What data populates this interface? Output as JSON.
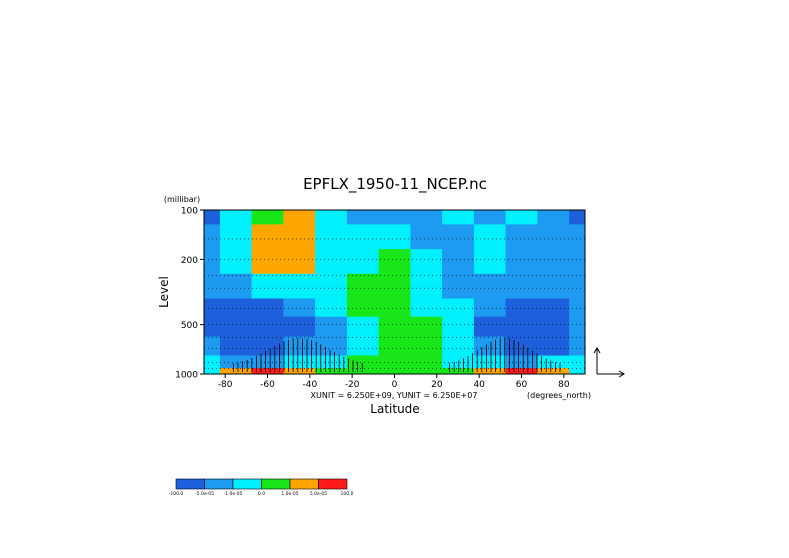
{
  "chart_data": {
    "type": "heatmap",
    "title": "EPFLX_1950-11_NCEP.nc",
    "xlabel": "Latitude",
    "ylabel": "Level",
    "y_unit": "(millibar)",
    "x_unit": "(degrees_north)",
    "vector_note": "XUNIT = 6.250E+09, YUNIT = 6.250E+07",
    "xlim": [
      -90,
      90
    ],
    "ylim": [
      1000,
      100
    ],
    "y_scale": "log",
    "x_ticks": [
      "-80",
      "-60",
      "-40",
      "-20",
      "0",
      "20",
      "40",
      "60",
      "80"
    ],
    "x_tick_values": [
      -80,
      -60,
      -40,
      -20,
      0,
      20,
      40,
      60,
      80
    ],
    "y_ticks": [
      "100",
      "200",
      "500",
      "1000"
    ],
    "y_tick_values": [
      100,
      200,
      500,
      1000
    ],
    "grid": "dotted horizontal",
    "legend_placement": "bottom-left colorbar",
    "colorbar": {
      "labels": [
        "-100.0",
        "-5.0e-05",
        "-1.0e-05",
        "0.0",
        "1.0e-05",
        "5.0e-05",
        "100.0"
      ],
      "colors": [
        "#1e5fdc",
        "#1e9bf0",
        "#00f0ff",
        "#19e619",
        "#ffa500",
        "#ff1a1a"
      ]
    },
    "color_scale": [
      "#1e5fdc",
      "#1e9bf0",
      "#00f0ff",
      "#19e619",
      "#ffa500",
      "#ff1a1a"
    ],
    "field_lat": [
      -90,
      -75,
      -60,
      -45,
      -30,
      -15,
      0,
      15,
      30,
      45,
      60,
      75,
      90
    ],
    "field_level": [
      100,
      150,
      200,
      300,
      400,
      500,
      700,
      850,
      1000
    ],
    "field_values": [
      [
        0,
        2,
        3,
        4,
        2,
        1,
        1,
        1,
        2,
        1,
        2,
        1,
        0
      ],
      [
        1,
        2,
        4,
        4,
        2,
        2,
        2,
        1,
        1,
        2,
        1,
        1,
        1
      ],
      [
        1,
        2,
        4,
        4,
        2,
        2,
        3,
        2,
        1,
        2,
        1,
        1,
        1
      ],
      [
        1,
        1,
        2,
        2,
        2,
        3,
        3,
        2,
        1,
        1,
        1,
        1,
        1
      ],
      [
        0,
        0,
        0,
        1,
        2,
        3,
        3,
        2,
        2,
        1,
        0,
        0,
        1
      ],
      [
        0,
        0,
        0,
        0,
        1,
        2,
        3,
        3,
        2,
        0,
        0,
        0,
        1
      ],
      [
        1,
        0,
        0,
        1,
        1,
        2,
        3,
        3,
        2,
        1,
        0,
        0,
        1
      ],
      [
        2,
        1,
        1,
        2,
        2,
        3,
        3,
        3,
        2,
        2,
        1,
        2,
        2
      ],
      [
        2,
        4,
        5,
        4,
        3,
        3,
        3,
        3,
        3,
        4,
        5,
        4,
        2
      ]
    ]
  }
}
